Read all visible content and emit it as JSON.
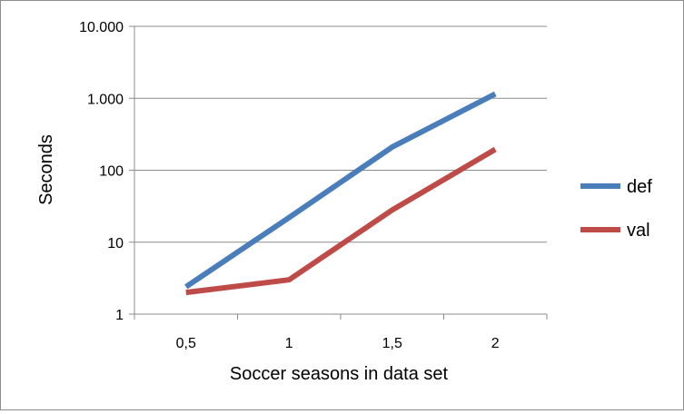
{
  "chart_data": {
    "type": "line",
    "title": "",
    "xlabel": "Soccer seasons in data set",
    "ylabel": "Seconds",
    "categories": [
      "0,5",
      "1",
      "1,5",
      "2"
    ],
    "y_scale": "log",
    "ylim": [
      1,
      10000
    ],
    "y_ticks": [
      1,
      10,
      100,
      1000,
      10000
    ],
    "y_tick_labels": [
      "1",
      "10",
      "100",
      "1.000",
      "10.000"
    ],
    "grid": "horizontal",
    "legend_position": "right",
    "series": [
      {
        "name": "def",
        "color": "#4a7ebb",
        "values": [
          2.4,
          22,
          210,
          1150
        ]
      },
      {
        "name": "val",
        "color": "#be4b48",
        "values": [
          2.0,
          3.0,
          28,
          195
        ]
      }
    ]
  }
}
